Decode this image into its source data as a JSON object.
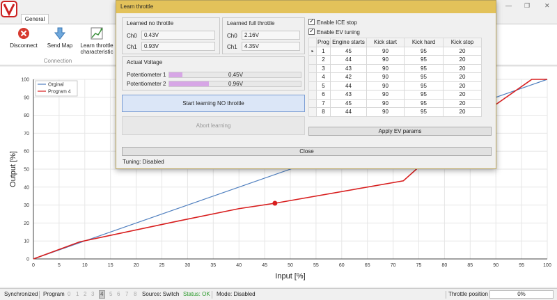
{
  "ribbon": {
    "tab": "General",
    "buttons": [
      {
        "label": "Disconnect",
        "icon": "disconnect-icon"
      },
      {
        "label": "Send Map",
        "icon": "download-arrow-icon"
      },
      {
        "label": "Learn throttle characteristic",
        "icon": "chart-icon"
      }
    ],
    "group_label": "Connection"
  },
  "dialog": {
    "title": "Learn throttle",
    "learned_no_throttle": {
      "title": "Learned no throttle",
      "ch0_label": "Ch0",
      "ch0": "0.43V",
      "ch1_label": "Ch1",
      "ch1": "0.93V"
    },
    "learned_full_throttle": {
      "title": "Learned full throttle",
      "ch0_label": "Ch0",
      "ch0": "2.16V",
      "ch1_label": "Ch1",
      "ch1": "4.35V"
    },
    "actual_voltage": {
      "title": "Actual Voltage",
      "pot1_label": "Potentiometer 1",
      "pot1_value": "0.45V",
      "pot1_fill": 0.1,
      "pot2_label": "Potentiometer 2",
      "pot2_value": "0.96V",
      "pot2_fill": 0.3
    },
    "start_button": "Start learning NO throttle",
    "abort_button": "Abort learning",
    "enable_ice_stop": "Enable ICE stop",
    "enable_ev_tuning": "Enable EV tuning",
    "table": {
      "headers": [
        "Prog",
        "Engine starts",
        "Kick start",
        "Kick hard",
        "Kick stop"
      ],
      "rows": [
        [
          "1",
          "45",
          "90",
          "95",
          "20"
        ],
        [
          "2",
          "44",
          "90",
          "95",
          "20"
        ],
        [
          "3",
          "43",
          "90",
          "95",
          "20"
        ],
        [
          "4",
          "42",
          "90",
          "95",
          "20"
        ],
        [
          "5",
          "44",
          "90",
          "95",
          "20"
        ],
        [
          "6",
          "43",
          "90",
          "95",
          "20"
        ],
        [
          "7",
          "45",
          "90",
          "95",
          "20"
        ],
        [
          "8",
          "44",
          "90",
          "95",
          "20"
        ]
      ],
      "selected_indicator": "▸"
    },
    "apply_button": "Apply EV params",
    "close_button": "Close",
    "tuning_status": "Tuning: Disabled"
  },
  "chart_data": {
    "type": "line",
    "xlabel": "Input [%]",
    "ylabel": "Output [%]",
    "xlim": [
      0,
      100
    ],
    "ylim": [
      0,
      100
    ],
    "xticks": [
      0,
      5,
      10,
      15,
      20,
      25,
      30,
      35,
      40,
      45,
      50,
      55,
      60,
      65,
      70,
      75,
      80,
      85,
      90,
      95,
      100
    ],
    "yticks": [
      0,
      10,
      20,
      30,
      40,
      50,
      60,
      70,
      80,
      90,
      100
    ],
    "legend": "top-left",
    "series": [
      {
        "name": "Orginal",
        "color": "#4f7fbf",
        "x": [
          0,
          100
        ],
        "y": [
          0,
          100
        ]
      },
      {
        "name": "Program 4",
        "color": "#d81e1e",
        "x": [
          0,
          9,
          28,
          40,
          47,
          72,
          80,
          90,
          97,
          100
        ],
        "y": [
          0,
          9.5,
          21,
          28,
          31,
          43.5,
          64,
          86,
          100,
          100
        ]
      }
    ],
    "marker": {
      "x": 47,
      "y": 31
    }
  },
  "status": {
    "synchronized": "Synchronized",
    "program_label": "Program",
    "programs": [
      "0",
      "1",
      "2",
      "3",
      "4",
      "5",
      "6",
      "7",
      "8"
    ],
    "active_program": "4",
    "source": "Source: Switch",
    "status_ok": "Status: OK",
    "mode": "Mode: Disabled",
    "throttle_label": "Throttle position",
    "throttle_value": "0%"
  },
  "window_controls": {
    "minimize": "minimize-icon",
    "maximize": "maximize-icon",
    "close": "close-icon"
  }
}
